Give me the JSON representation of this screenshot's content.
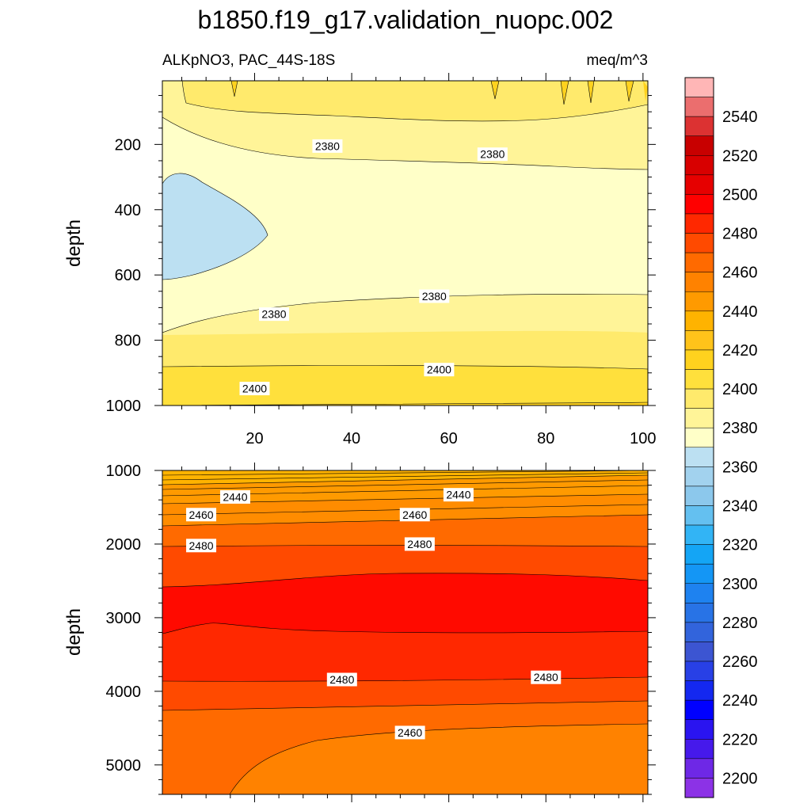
{
  "figure": {
    "title": "b1850.f19_g17.validation_nuopc.002",
    "subtitle_left": "ALKpNO3, PAC_44S-18S",
    "subtitle_right": "meq/m^3"
  },
  "chart_data": [
    {
      "type": "contour",
      "panel": "upper",
      "title": "",
      "xlabel": "",
      "ylabel": "depth",
      "xlim": [
        1,
        101
      ],
      "ylim": [
        1000,
        5
      ],
      "y_inverted": true,
      "xticks": [
        "20",
        "40",
        "60",
        "80",
        "100"
      ],
      "yticks": [
        "200",
        "400",
        "600",
        "800",
        "1000"
      ],
      "fill_regions": [
        {
          "level_min": 2360,
          "level_max": 2370,
          "color": "#BCE0F2"
        },
        {
          "level_min": 2370,
          "level_max": 2380,
          "color": "#FFFFC8"
        },
        {
          "level_min": 2380,
          "level_max": 2390,
          "color": "#FFF498"
        },
        {
          "level_min": 2390,
          "level_max": 2400,
          "color": "#FFEA6C"
        },
        {
          "level_min": 2400,
          "level_max": 2410,
          "color": "#FFE03C"
        },
        {
          "level_min": 2410,
          "level_max": 2420,
          "color": "#FFD21E"
        }
      ],
      "contour_labels": [
        {
          "text": "2380",
          "x": 35,
          "y": 205
        },
        {
          "text": "2380",
          "x": 69,
          "y": 230
        },
        {
          "text": "2380",
          "x": 24,
          "y": 720
        },
        {
          "text": "2380",
          "x": 57,
          "y": 665
        },
        {
          "text": "2400",
          "x": 20,
          "y": 948
        },
        {
          "text": "2400",
          "x": 58,
          "y": 890
        }
      ]
    },
    {
      "type": "contour",
      "panel": "lower",
      "title": "",
      "xlabel": "",
      "ylabel": "depth",
      "xlim": [
        1,
        101
      ],
      "ylim": [
        5400,
        1000
      ],
      "y_inverted": true,
      "xticks": [
        "20",
        "40",
        "60",
        "80",
        "100"
      ],
      "yticks": [
        "1000",
        "2000",
        "3000",
        "4000",
        "5000"
      ],
      "fill_regions": [
        {
          "level_min": 2420,
          "level_max": 2440,
          "color": "#FFB300"
        },
        {
          "level_min": 2440,
          "level_max": 2460,
          "color": "#FF8C00"
        },
        {
          "level_min": 2460,
          "level_max": 2470,
          "color": "#FF6A00"
        },
        {
          "level_min": 2470,
          "level_max": 2480,
          "color": "#FF4A00"
        },
        {
          "level_min": 2480,
          "level_max": 2490,
          "color": "#FF2800"
        },
        {
          "level_min": 2490,
          "level_max": 2500,
          "color": "#FF0A00"
        }
      ],
      "contour_labels": [
        {
          "text": "2440",
          "x": 16,
          "y": 1360
        },
        {
          "text": "2440",
          "x": 62,
          "y": 1330
        },
        {
          "text": "2460",
          "x": 9,
          "y": 1600
        },
        {
          "text": "2460",
          "x": 53,
          "y": 1600
        },
        {
          "text": "2480",
          "x": 9,
          "y": 2020
        },
        {
          "text": "2480",
          "x": 54,
          "y": 2000
        },
        {
          "text": "2480",
          "x": 38,
          "y": 3840
        },
        {
          "text": "2480",
          "x": 80,
          "y": 3810
        },
        {
          "text": "2460",
          "x": 52,
          "y": 4560
        }
      ]
    }
  ],
  "colorbar": {
    "labels": [
      "2540",
      "2520",
      "2500",
      "2480",
      "2460",
      "2440",
      "2420",
      "2400",
      "2380",
      "2360",
      "2340",
      "2320",
      "2300",
      "2280",
      "2260",
      "2240",
      "2220",
      "2200"
    ],
    "colors": [
      "#FFB6B6",
      "#EB6E6E",
      "#DC3232",
      "#C80000",
      "#D80000",
      "#E60000",
      "#FF0000",
      "#FF2800",
      "#FF4A00",
      "#FF6A00",
      "#FF8200",
      "#FF9A00",
      "#FFB300",
      "#FFC31A",
      "#FFD21E",
      "#FFE03C",
      "#FFEA6C",
      "#FFF498",
      "#FFFFC8",
      "#BCE0F2",
      "#A2D2EE",
      "#8CC8EC",
      "#64C0F0",
      "#32B4F5",
      "#14A5F5",
      "#1496F5",
      "#1E82F0",
      "#2873E6",
      "#3264DC",
      "#3C55D2",
      "#2840E6",
      "#1428F0",
      "#0000FF",
      "#2A14F0",
      "#4619EB",
      "#6E28E6",
      "#8C32E6"
    ]
  }
}
